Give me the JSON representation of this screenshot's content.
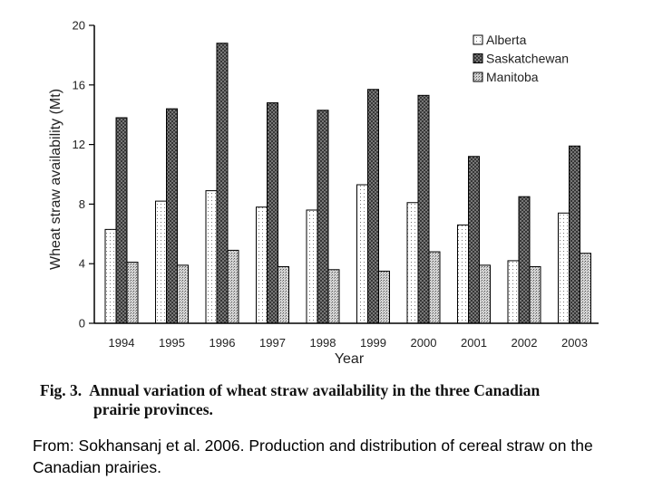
{
  "chart_data": {
    "type": "bar",
    "categories": [
      "1994",
      "1995",
      "1996",
      "1997",
      "1998",
      "1999",
      "2000",
      "2001",
      "2002",
      "2003"
    ],
    "series": [
      {
        "name": "Alberta",
        "values": [
          6.3,
          8.2,
          8.9,
          7.8,
          7.6,
          9.3,
          8.1,
          6.6,
          4.2,
          7.4
        ]
      },
      {
        "name": "Saskatchewan",
        "values": [
          13.8,
          14.4,
          18.8,
          14.8,
          14.3,
          15.7,
          15.3,
          11.2,
          8.5,
          11.9
        ]
      },
      {
        "name": "Manitoba",
        "values": [
          4.1,
          3.9,
          4.9,
          3.8,
          3.6,
          3.5,
          4.8,
          3.9,
          3.8,
          4.7
        ]
      }
    ],
    "xlabel": "Year",
    "ylabel": "Wheat straw availability (Mt)",
    "ylim": [
      0,
      20
    ],
    "yticks": [
      "0",
      "4",
      "8",
      "12",
      "16",
      "20"
    ],
    "legend_position": "top-right",
    "grid": false
  },
  "caption": {
    "label": "Fig. 3.",
    "line1": "Annual variation of wheat straw availability in the three Canadian",
    "line2": "prairie provinces."
  },
  "source_note": "From: Sokhansanj et al. 2006. Production and distribution of cereal straw on the Canadian prairies."
}
